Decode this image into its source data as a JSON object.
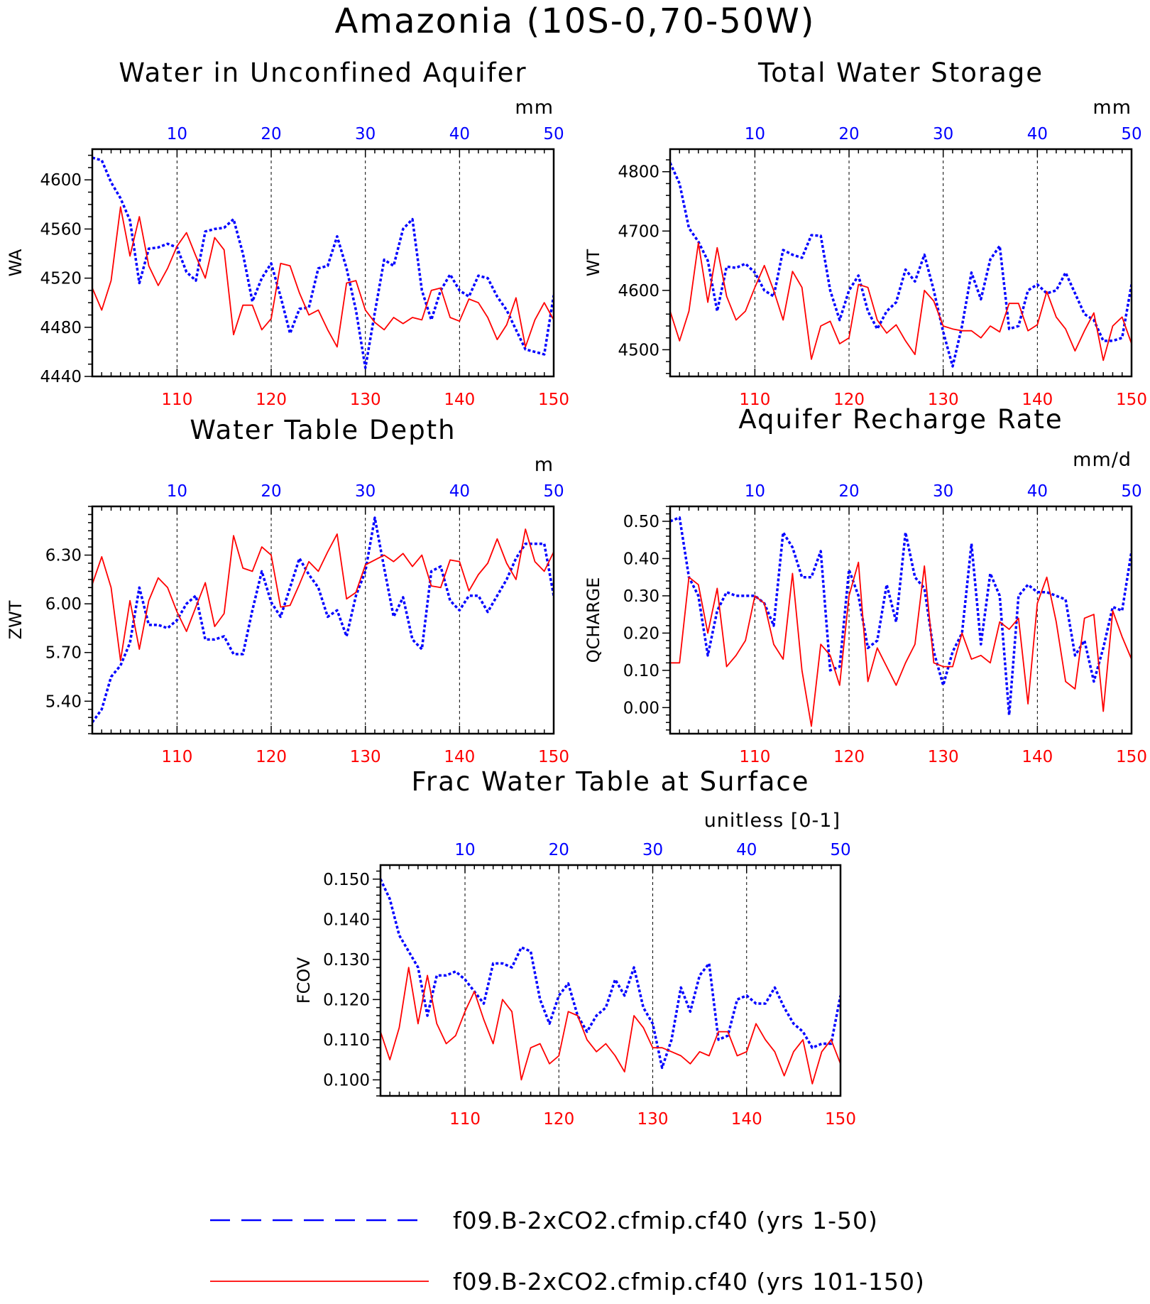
{
  "title": "Amazonia (10S-0,70-50W)",
  "colors": {
    "series_a": "#0000ff",
    "series_b": "#ff0000",
    "axis": "#000000",
    "grid": "#000000"
  },
  "legend": {
    "placement": "bottom",
    "items": [
      {
        "label": "f09.B-2xCO2.cfmip.cf40 (yrs 1-50)",
        "color": "#0000ff",
        "style": "dashed"
      },
      {
        "label": "f09.B-2xCO2.cfmip.cf40 (yrs 101-150)",
        "color": "#ff0000",
        "style": "solid"
      }
    ]
  },
  "chart_data": [
    {
      "type": "line",
      "title": "Water in Unconfined Aquifer",
      "units": "mm",
      "ylabel": "WA",
      "ylim": [
        4440,
        4625
      ],
      "yticks": [
        4440,
        4480,
        4520,
        4560,
        4600
      ],
      "ytick_labels": [
        "4440",
        "4480",
        "4520",
        "4560",
        "4600"
      ],
      "y_minor_step": 10,
      "x_top": {
        "range": [
          1,
          50
        ],
        "ticks": [
          10,
          20,
          30,
          40,
          50
        ]
      },
      "x_bottom": {
        "range": [
          101,
          150
        ],
        "ticks": [
          110,
          120,
          130,
          140,
          150
        ]
      },
      "grid": "vertical-dashed",
      "series": [
        {
          "values": [
            4618,
            4616,
            4598,
            4585,
            4567,
            4516,
            4544,
            4545,
            4548,
            4545,
            4525,
            4518,
            4558,
            4560,
            4561,
            4568,
            4540,
            4501,
            4520,
            4532,
            4505,
            4475,
            4495,
            4496,
            4528,
            4530,
            4554,
            4528,
            4494,
            4447,
            4492,
            4535,
            4530,
            4560,
            4568,
            4510,
            4486,
            4510,
            4523,
            4510,
            4505,
            4522,
            4520,
            4505,
            4494,
            4478,
            4462,
            4460,
            4458,
            4506
          ]
        },
        {
          "values": [
            4512,
            4494,
            4518,
            4578,
            4538,
            4570,
            4530,
            4514,
            4528,
            4546,
            4557,
            4538,
            4520,
            4553,
            4543,
            4474,
            4498,
            4498,
            4478,
            4487,
            4532,
            4530,
            4508,
            4490,
            4494,
            4478,
            4464,
            4516,
            4518,
            4494,
            4484,
            4478,
            4488,
            4483,
            4488,
            4486,
            4510,
            4512,
            4488,
            4485,
            4503,
            4500,
            4488,
            4470,
            4482,
            4504,
            4464,
            4486,
            4500,
            4486
          ]
        }
      ]
    },
    {
      "type": "line",
      "title": "Total Water Storage",
      "units": "mm",
      "ylabel": "WT",
      "ylim": [
        4455,
        4838
      ],
      "yticks": [
        4500,
        4600,
        4700,
        4800
      ],
      "ytick_labels": [
        "4500",
        "4600",
        "4700",
        "4800"
      ],
      "y_minor_step": 20,
      "x_top": {
        "range": [
          1,
          50
        ],
        "ticks": [
          10,
          20,
          30,
          40,
          50
        ]
      },
      "x_bottom": {
        "range": [
          101,
          150
        ],
        "ticks": [
          110,
          120,
          130,
          140,
          150
        ]
      },
      "grid": "vertical-dashed",
      "series": [
        {
          "values": [
            4815,
            4780,
            4705,
            4682,
            4650,
            4565,
            4640,
            4638,
            4645,
            4630,
            4600,
            4590,
            4668,
            4660,
            4655,
            4693,
            4692,
            4600,
            4550,
            4600,
            4625,
            4565,
            4535,
            4565,
            4580,
            4635,
            4615,
            4660,
            4600,
            4530,
            4472,
            4540,
            4630,
            4585,
            4652,
            4675,
            4535,
            4540,
            4600,
            4610,
            4595,
            4600,
            4630,
            4595,
            4560,
            4550,
            4515,
            4515,
            4520,
            4610
          ]
        },
        {
          "values": [
            4565,
            4515,
            4565,
            4680,
            4580,
            4672,
            4590,
            4550,
            4565,
            4605,
            4642,
            4600,
            4550,
            4632,
            4605,
            4484,
            4540,
            4548,
            4510,
            4520,
            4610,
            4605,
            4550,
            4528,
            4542,
            4515,
            4492,
            4600,
            4582,
            4540,
            4535,
            4532,
            4532,
            4520,
            4540,
            4530,
            4578,
            4578,
            4532,
            4542,
            4598,
            4555,
            4535,
            4498,
            4532,
            4562,
            4482,
            4540,
            4555,
            4510
          ]
        }
      ]
    },
    {
      "type": "line",
      "title": "Water Table Depth",
      "units": "m",
      "ylabel": "ZWT",
      "ylim": [
        5.2,
        6.6
      ],
      "yticks": [
        5.4,
        5.7,
        6.0,
        6.3
      ],
      "ytick_labels": [
        "5.40",
        "5.70",
        "6.00",
        "6.30"
      ],
      "y_minor_step": 0.05,
      "x_top": {
        "range": [
          1,
          50
        ],
        "ticks": [
          10,
          20,
          30,
          40,
          50
        ]
      },
      "x_bottom": {
        "range": [
          101,
          150
        ],
        "ticks": [
          110,
          120,
          130,
          140,
          150
        ]
      },
      "grid": "vertical-dashed",
      "series": [
        {
          "values": [
            5.27,
            5.35,
            5.55,
            5.62,
            5.76,
            6.1,
            5.87,
            5.87,
            5.85,
            5.9,
            6.0,
            6.05,
            5.78,
            5.78,
            5.8,
            5.69,
            5.69,
            5.96,
            6.2,
            6.01,
            5.92,
            6.1,
            6.28,
            6.18,
            6.1,
            5.92,
            5.96,
            5.8,
            6.05,
            6.2,
            6.53,
            6.22,
            5.92,
            6.04,
            5.78,
            5.72,
            6.2,
            6.23,
            6.02,
            5.96,
            6.05,
            6.05,
            5.95,
            6.05,
            6.15,
            6.28,
            6.37,
            6.37,
            6.37,
            6.05
          ]
        },
        {
          "values": [
            6.12,
            6.29,
            6.1,
            5.65,
            6.02,
            5.72,
            6.02,
            6.16,
            6.1,
            5.95,
            5.83,
            5.98,
            6.13,
            5.86,
            5.94,
            6.42,
            6.22,
            6.2,
            6.35,
            6.3,
            5.98,
            5.99,
            6.12,
            6.26,
            6.2,
            6.32,
            6.43,
            6.03,
            6.07,
            6.24,
            6.27,
            6.3,
            6.26,
            6.31,
            6.23,
            6.3,
            6.11,
            6.1,
            6.27,
            6.26,
            6.08,
            6.18,
            6.25,
            6.4,
            6.25,
            6.15,
            6.46,
            6.26,
            6.2,
            6.32
          ]
        }
      ]
    },
    {
      "type": "line",
      "title": "Aquifer Recharge Rate",
      "units": "mm/d",
      "ylabel": "QCHARGE",
      "ylim": [
        -0.07,
        0.54
      ],
      "yticks": [
        0.0,
        0.1,
        0.2,
        0.3,
        0.4,
        0.5
      ],
      "ytick_labels": [
        "0.00",
        "0.10",
        "0.20",
        "0.30",
        "0.40",
        "0.50"
      ],
      "y_minor_step": 0.02,
      "x_top": {
        "range": [
          1,
          50
        ],
        "ticks": [
          10,
          20,
          30,
          40,
          50
        ]
      },
      "x_bottom": {
        "range": [
          101,
          150
        ],
        "ticks": [
          110,
          120,
          130,
          140,
          150
        ]
      },
      "grid": "vertical-dashed",
      "series": [
        {
          "values": [
            0.5,
            0.51,
            0.35,
            0.3,
            0.14,
            0.26,
            0.31,
            0.3,
            0.3,
            0.3,
            0.28,
            0.22,
            0.47,
            0.43,
            0.35,
            0.35,
            0.42,
            0.1,
            0.11,
            0.37,
            0.3,
            0.16,
            0.18,
            0.33,
            0.23,
            0.47,
            0.35,
            0.32,
            0.15,
            0.06,
            0.15,
            0.2,
            0.44,
            0.17,
            0.36,
            0.3,
            -0.02,
            0.3,
            0.33,
            0.31,
            0.31,
            0.3,
            0.29,
            0.14,
            0.18,
            0.07,
            0.16,
            0.27,
            0.26,
            0.42
          ]
        },
        {
          "values": [
            0.12,
            0.12,
            0.35,
            0.33,
            0.2,
            0.32,
            0.11,
            0.14,
            0.18,
            0.3,
            0.28,
            0.17,
            0.13,
            0.36,
            0.1,
            -0.05,
            0.17,
            0.14,
            0.06,
            0.3,
            0.39,
            0.07,
            0.16,
            0.11,
            0.06,
            0.12,
            0.17,
            0.38,
            0.12,
            0.11,
            0.11,
            0.2,
            0.13,
            0.14,
            0.12,
            0.23,
            0.21,
            0.24,
            0.01,
            0.28,
            0.35,
            0.23,
            0.07,
            0.05,
            0.24,
            0.25,
            -0.01,
            0.26,
            0.19,
            0.13
          ]
        }
      ]
    },
    {
      "type": "line",
      "title": "Frac Water Table at Surface",
      "units": "unitless [0-1]",
      "ylabel": "FCOV",
      "ylim": [
        0.096,
        0.1535
      ],
      "yticks": [
        0.1,
        0.11,
        0.12,
        0.13,
        0.14,
        0.15
      ],
      "ytick_labels": [
        "0.100",
        "0.110",
        "0.120",
        "0.130",
        "0.140",
        "0.150"
      ],
      "y_minor_step": 0.002,
      "x_top": {
        "range": [
          1,
          50
        ],
        "ticks": [
          10,
          20,
          30,
          40,
          50
        ]
      },
      "x_bottom": {
        "range": [
          101,
          150
        ],
        "ticks": [
          110,
          120,
          130,
          140,
          150
        ]
      },
      "grid": "vertical-dashed",
      "series": [
        {
          "values": [
            0.15,
            0.145,
            0.136,
            0.132,
            0.128,
            0.116,
            0.126,
            0.126,
            0.127,
            0.125,
            0.122,
            0.119,
            0.129,
            0.129,
            0.128,
            0.133,
            0.132,
            0.12,
            0.114,
            0.121,
            0.124,
            0.116,
            0.112,
            0.116,
            0.118,
            0.125,
            0.121,
            0.128,
            0.118,
            0.114,
            0.103,
            0.11,
            0.123,
            0.117,
            0.126,
            0.129,
            0.11,
            0.111,
            0.12,
            0.121,
            0.119,
            0.119,
            0.123,
            0.118,
            0.114,
            0.112,
            0.108,
            0.109,
            0.109,
            0.121
          ]
        },
        {
          "values": [
            0.112,
            0.105,
            0.113,
            0.128,
            0.114,
            0.126,
            0.114,
            0.109,
            0.111,
            0.117,
            0.122,
            0.115,
            0.109,
            0.12,
            0.117,
            0.1,
            0.108,
            0.109,
            0.104,
            0.106,
            0.117,
            0.116,
            0.11,
            0.107,
            0.109,
            0.106,
            0.102,
            0.116,
            0.113,
            0.108,
            0.108,
            0.107,
            0.106,
            0.104,
            0.107,
            0.106,
            0.112,
            0.112,
            0.106,
            0.107,
            0.114,
            0.11,
            0.107,
            0.101,
            0.107,
            0.11,
            0.099,
            0.107,
            0.11,
            0.104
          ]
        }
      ]
    }
  ]
}
